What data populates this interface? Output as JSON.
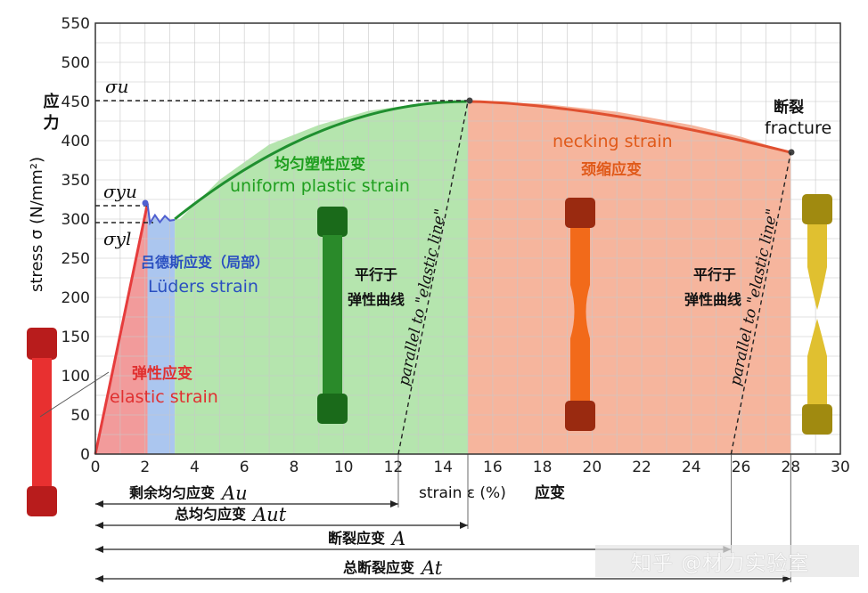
{
  "chart_data": {
    "type": "line",
    "x_unit": "%",
    "y_unit": "N/mm²",
    "xlim": [
      0,
      30
    ],
    "ylim": [
      0,
      550
    ],
    "x_ticks": [
      "0",
      "2",
      "4",
      "6",
      "8",
      "10",
      "12",
      "14",
      "16",
      "18",
      "20",
      "22",
      "24",
      "26",
      "28",
      "30"
    ],
    "y_ticks": [
      "0",
      "50",
      "100",
      "150",
      "200",
      "250",
      "300",
      "350",
      "400",
      "450",
      "500",
      "550"
    ],
    "grid": true,
    "ylabel_cn": "应力",
    "ylabel": "stress σ (N/mm²)",
    "xlabel": "strain ε (%)",
    "xlabel_cn": "应变",
    "curve": {
      "x": [
        0,
        2.1,
        2.2,
        2.4,
        2.6,
        2.8,
        3.0,
        3.4,
        5,
        7,
        9,
        11,
        13,
        15,
        18,
        21,
        24,
        26,
        28
      ],
      "y": [
        0,
        320,
        295,
        305,
        296,
        304,
        298,
        300,
        350,
        395,
        420,
        438,
        447,
        450,
        447,
        437,
        420,
        405,
        385
      ]
    },
    "regions": [
      {
        "name": "elastic",
        "x": [
          0,
          2.1
        ],
        "color": "#f08a8a",
        "label_cn": "弹性应变",
        "label": "elastic strain",
        "label_color": "#e03030"
      },
      {
        "name": "luders",
        "x": [
          2.1,
          3.2
        ],
        "color": "#9cbcec",
        "label_cn": "吕德斯应变（局部）",
        "label": "Lüders strain",
        "label_color": "#2a4fc0"
      },
      {
        "name": "uniform",
        "x": [
          3.2,
          15
        ],
        "color": "#a8e0a0",
        "label_cn": "均匀塑性应变",
        "label": "uniform plastic strain",
        "label_color": "#1e9e1e"
      },
      {
        "name": "necking",
        "x": [
          15,
          28
        ],
        "color": "#f4a88c",
        "label_cn": "颈缩应变",
        "label": "necking strain",
        "label_color": "#e05a1a"
      }
    ],
    "annotations": {
      "sigma_u": {
        "text": "σu",
        "value": 450
      },
      "sigma_yu": {
        "text": "σyu",
        "value": 320
      },
      "sigma_yl": {
        "text": "σyl",
        "value": 298
      },
      "fracture_cn": "断裂",
      "fracture": "fracture",
      "parallel_cn_1": "平行于",
      "parallel_cn_2": "弹性曲线",
      "parallel_en": "parallel to \"elastic line\""
    },
    "parallel_lines": [
      {
        "x": [
          12.2,
          15
        ],
        "y": [
          0,
          450
        ]
      },
      {
        "x": [
          25.6,
          28
        ],
        "y": [
          0,
          385
        ]
      }
    ],
    "dimensions": [
      {
        "label_cn": "剩余均匀应变",
        "symbol": "Au",
        "x_end": 12.2
      },
      {
        "label_cn": "总均匀应变",
        "symbol": "Aut",
        "x_end": 15
      },
      {
        "label_cn": "断裂应变",
        "symbol": "A",
        "x_end": 25.6
      },
      {
        "label_cn": "总断裂应变",
        "symbol": "At",
        "x_end": 28
      }
    ]
  },
  "colors": {
    "curve_elastic": "#e63c3c",
    "curve_luders": "#5060d0",
    "curve_uniform": "#1f8f2f",
    "curve_necking": "#e05030"
  },
  "watermark": "知乎 @材力实验室"
}
